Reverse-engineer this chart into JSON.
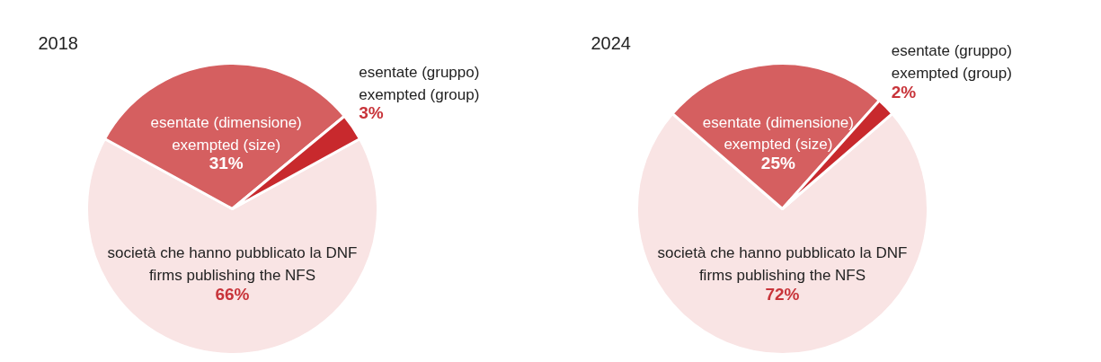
{
  "chart_data": [
    {
      "type": "pie",
      "title": "2018",
      "categories": [
        "società che hanno pubblicato la DNF\nfirms publishing the NFS",
        "esentate (dimensione)\nexempted (size)",
        "esentate (gruppo)\nexempted (group)"
      ],
      "values": [
        66,
        31,
        3
      ],
      "colors": [
        "#f9e4e4",
        "#d55f60",
        "#c8292d"
      ],
      "value_labels": [
        "66%",
        "31%",
        "3%"
      ]
    },
    {
      "type": "pie",
      "title": "2024",
      "categories": [
        "società che hanno pubblicato la DNF\nfirms publishing the NFS",
        "esentate (dimensione)\nexempted (size)",
        "esentate (gruppo)\nexempted (group)"
      ],
      "values": [
        72,
        25,
        2
      ],
      "colors": [
        "#f9e4e4",
        "#d55f60",
        "#c8292d"
      ],
      "value_labels": [
        "72%",
        "25%",
        "2%"
      ]
    }
  ]
}
